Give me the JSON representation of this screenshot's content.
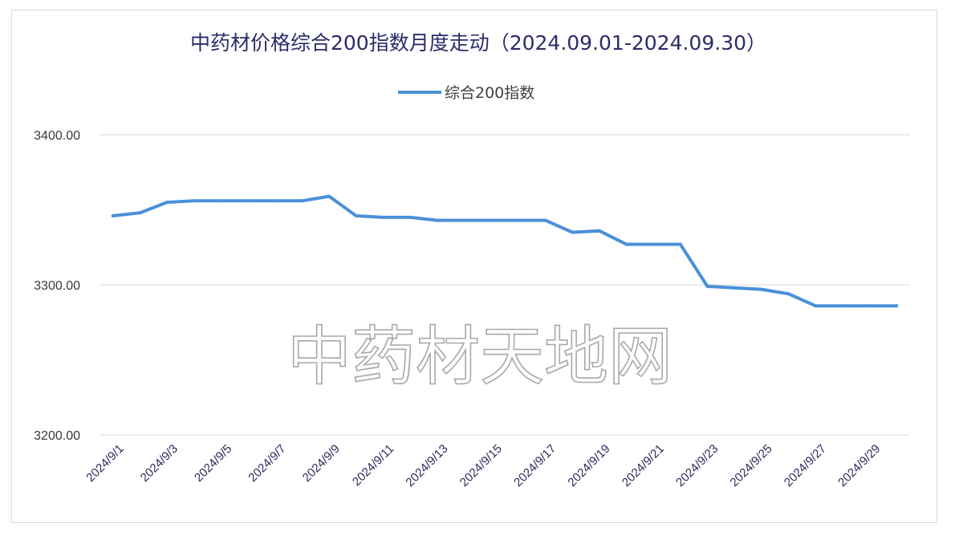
{
  "watermark": "中药材天地网",
  "colors": {
    "series": "#4a90d9",
    "title": "#2b2b6b",
    "grid": "#d9d9d9"
  },
  "chart_data": {
    "type": "line",
    "title": "中药材价格综合200指数月度走动（2024.09.01-2024.09.30）",
    "xlabel": "",
    "ylabel": "",
    "ylim": [
      3200,
      3400
    ],
    "y_ticks": [
      "3200.00",
      "3300.00",
      "3400.00"
    ],
    "x_tick_labels": [
      "2024/9/1",
      "2024/9/3",
      "2024/9/5",
      "2024/9/7",
      "2024/9/9",
      "2024/9/11",
      "2024/9/13",
      "2024/9/15",
      "2024/9/17",
      "2024/9/19",
      "2024/9/21",
      "2024/9/23",
      "2024/9/25",
      "2024/9/27",
      "2024/9/29"
    ],
    "grid": true,
    "legend_position": "top-center",
    "categories": [
      "2024/9/1",
      "2024/9/2",
      "2024/9/3",
      "2024/9/4",
      "2024/9/5",
      "2024/9/6",
      "2024/9/7",
      "2024/9/8",
      "2024/9/9",
      "2024/9/10",
      "2024/9/11",
      "2024/9/12",
      "2024/9/13",
      "2024/9/14",
      "2024/9/15",
      "2024/9/16",
      "2024/9/17",
      "2024/9/18",
      "2024/9/19",
      "2024/9/20",
      "2024/9/21",
      "2024/9/22",
      "2024/9/23",
      "2024/9/24",
      "2024/9/25",
      "2024/9/26",
      "2024/9/27",
      "2024/9/28",
      "2024/9/29",
      "2024/9/30"
    ],
    "series": [
      {
        "name": "综合200指数",
        "values": [
          3346,
          3348,
          3355,
          3356,
          3356,
          3356,
          3356,
          3356,
          3359,
          3346,
          3345,
          3345,
          3343,
          3343,
          3343,
          3343,
          3343,
          3335,
          3336,
          3327,
          3327,
          3327,
          3299,
          3298,
          3297,
          3294,
          3286,
          3286,
          3286,
          3286
        ]
      }
    ]
  }
}
